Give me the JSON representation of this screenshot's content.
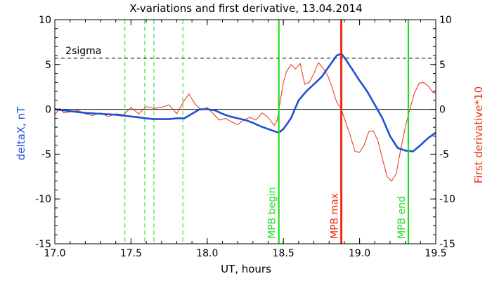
{
  "chart_data": {
    "type": "line",
    "title": "X-variations and first derivative, 13.04.2014",
    "xlabel": "UT, hours",
    "ylabel_left": "deltaX, nT",
    "ylabel_right": "First derivative*10",
    "xlim": [
      17.0,
      19.5
    ],
    "ylim": [
      -15,
      10
    ],
    "x_ticks": [
      17.0,
      17.5,
      18.0,
      18.5,
      19.0,
      19.5
    ],
    "x_tick_labels": [
      "17.0",
      "17.5",
      "18.0",
      "18.5",
      "19.0",
      "19.5"
    ],
    "y_ticks": [
      10,
      5,
      0,
      -5,
      -10,
      -15
    ],
    "y_tick_labels": [
      "10",
      "5",
      "0",
      "-5",
      "-10",
      "-15"
    ],
    "sigma_level": 5.7,
    "sigma_label": "2sigma",
    "zero_line": 0,
    "dashed_markers": [
      17.46,
      17.59,
      17.65,
      17.84
    ],
    "markers": [
      {
        "x": 18.47,
        "label": "MPB begin",
        "color": "#22dd22"
      },
      {
        "x": 18.88,
        "label": "MPB max",
        "color": "#ee2a10"
      },
      {
        "x": 19.32,
        "label": "MPB end",
        "color": "#22dd22"
      }
    ],
    "series": [
      {
        "role": "deltaX",
        "color": "#1f4fd6",
        "x": [
          17.0,
          17.05,
          17.1,
          17.2,
          17.3,
          17.4,
          17.5,
          17.55,
          17.6,
          17.65,
          17.7,
          17.75,
          17.8,
          17.85,
          17.9,
          17.95,
          18.0,
          18.05,
          18.1,
          18.15,
          18.2,
          18.25,
          18.3,
          18.35,
          18.4,
          18.45,
          18.47,
          18.5,
          18.55,
          18.6,
          18.65,
          18.7,
          18.75,
          18.8,
          18.85,
          18.88,
          18.9,
          18.95,
          19.0,
          19.05,
          19.1,
          19.15,
          19.2,
          19.25,
          19.3,
          19.35,
          19.4,
          19.45,
          19.5
        ],
        "values": [
          0.0,
          -0.1,
          -0.2,
          -0.4,
          -0.5,
          -0.6,
          -0.8,
          -0.9,
          -1.0,
          -1.1,
          -1.1,
          -1.1,
          -1.0,
          -1.0,
          -0.5,
          0.0,
          0.0,
          -0.1,
          -0.5,
          -0.8,
          -1.0,
          -1.2,
          -1.5,
          -1.9,
          -2.2,
          -2.5,
          -2.6,
          -2.2,
          -1.0,
          1.0,
          2.0,
          2.8,
          3.6,
          4.8,
          6.0,
          6.2,
          5.8,
          4.5,
          3.2,
          2.0,
          0.5,
          -1.0,
          -3.0,
          -4.3,
          -4.6,
          -4.7,
          -4.0,
          -3.2,
          -2.6
        ]
      },
      {
        "role": "first derivative*10",
        "color": "#e8300e",
        "x": [
          17.0,
          17.03,
          17.06,
          17.1,
          17.15,
          17.2,
          17.25,
          17.3,
          17.35,
          17.4,
          17.45,
          17.5,
          17.55,
          17.6,
          17.65,
          17.7,
          17.75,
          17.8,
          17.85,
          17.88,
          17.92,
          17.96,
          18.0,
          18.04,
          18.08,
          18.12,
          18.16,
          18.2,
          18.24,
          18.28,
          18.32,
          18.36,
          18.4,
          18.44,
          18.46,
          18.48,
          18.5,
          18.52,
          18.55,
          18.58,
          18.61,
          18.64,
          18.67,
          18.7,
          18.73,
          18.76,
          18.79,
          18.82,
          18.85,
          18.88,
          18.91,
          18.94,
          18.97,
          19.0,
          19.03,
          19.06,
          19.09,
          19.12,
          19.15,
          19.18,
          19.21,
          19.24,
          19.27,
          19.3,
          19.33,
          19.36,
          19.39,
          19.42,
          19.45,
          19.48,
          19.5
        ],
        "values": [
          -0.6,
          0.1,
          -0.4,
          -0.3,
          -0.1,
          -0.5,
          -0.7,
          -0.4,
          -0.8,
          -0.5,
          -0.6,
          0.2,
          -0.5,
          0.3,
          0.1,
          0.2,
          0.5,
          -0.5,
          1.0,
          1.7,
          0.6,
          -0.1,
          0.2,
          -0.5,
          -1.2,
          -1.0,
          -1.4,
          -1.7,
          -1.2,
          -0.9,
          -1.2,
          -0.4,
          -0.9,
          -1.8,
          -1.2,
          1.0,
          3.0,
          4.2,
          5.0,
          4.5,
          5.1,
          2.8,
          3.0,
          4.0,
          5.2,
          4.6,
          3.8,
          2.4,
          0.8,
          0.0,
          -1.5,
          -3.0,
          -4.7,
          -4.8,
          -4.0,
          -2.5,
          -2.4,
          -3.5,
          -5.5,
          -7.5,
          -8.0,
          -7.2,
          -4.5,
          -2.0,
          0.0,
          1.8,
          2.9,
          3.0,
          2.6,
          1.9,
          1.8
        ]
      }
    ]
  }
}
